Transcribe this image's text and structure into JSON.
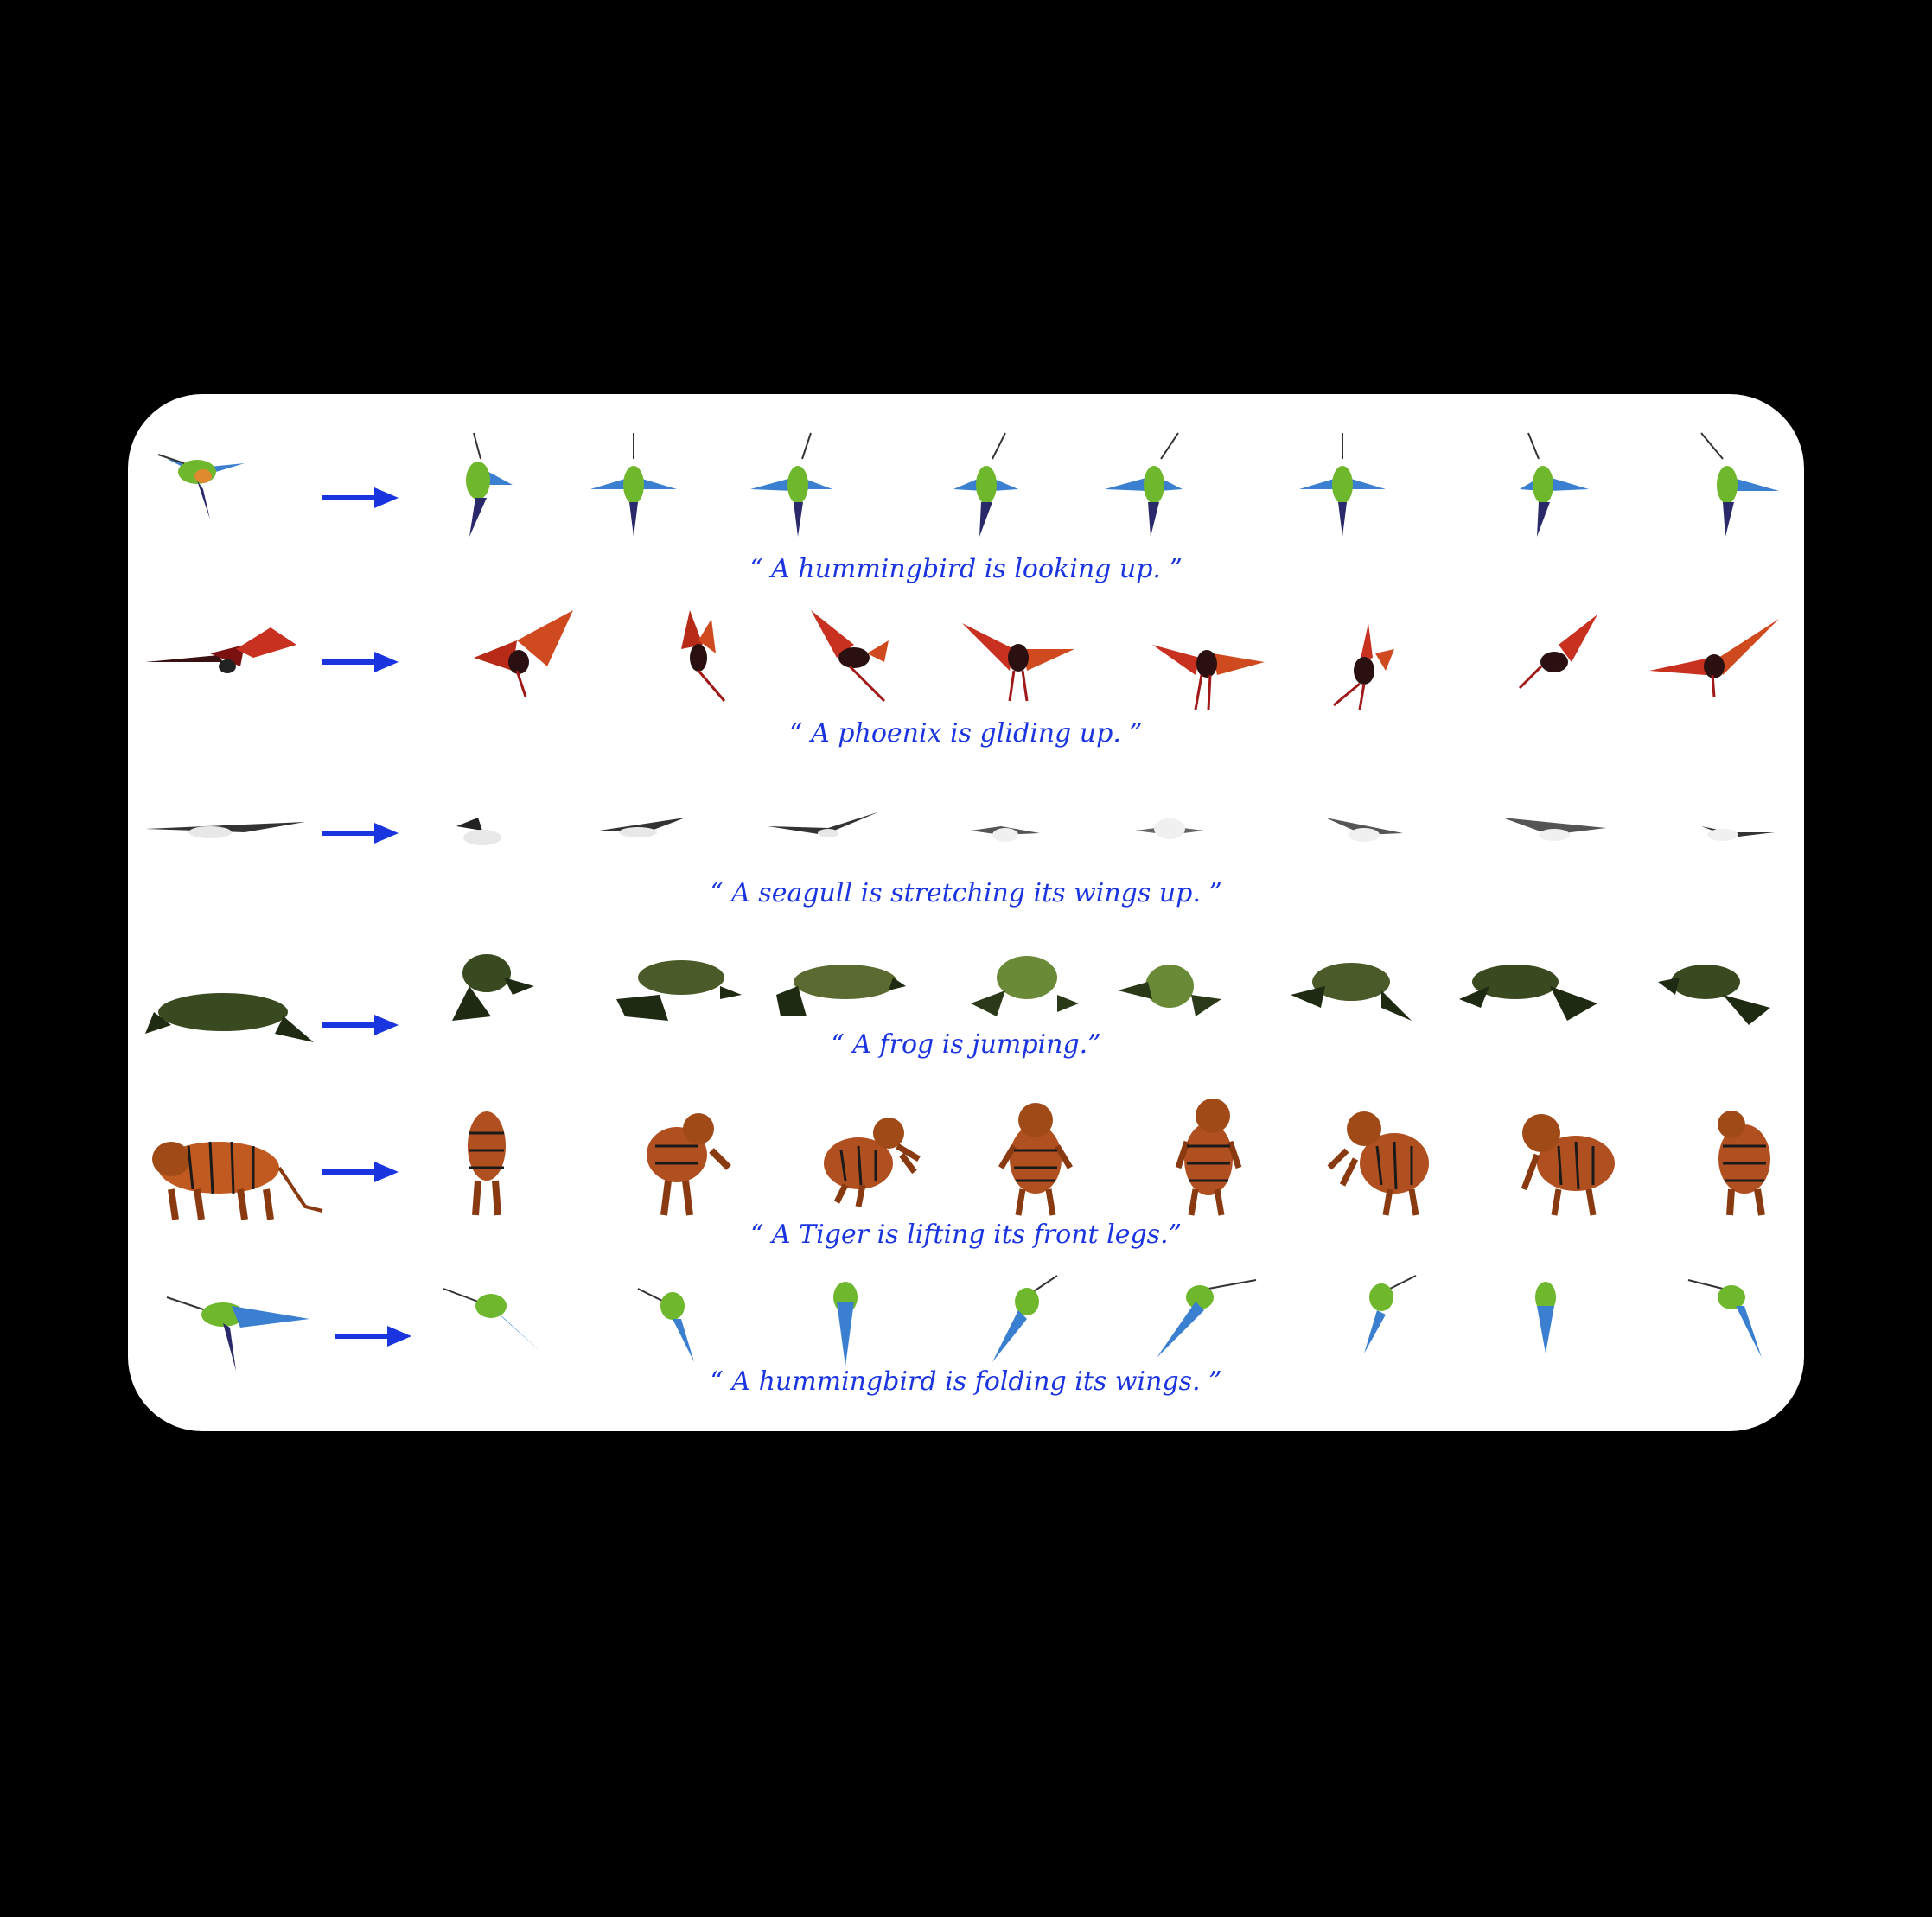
{
  "colors": {
    "background": "#000000",
    "card": "#ffffff",
    "caption": "#1a35e0",
    "arrow": "#1a35e0"
  },
  "rows": [
    {
      "subject": "hummingbird",
      "caption": "“ A hummingbird is looking up. ”",
      "frames": 8
    },
    {
      "subject": "phoenix",
      "caption": "“ A phoenix is gliding up. ”",
      "frames": 8
    },
    {
      "subject": "seagull",
      "caption": "“ A seagull is stretching its wings up. ”",
      "frames": 8
    },
    {
      "subject": "frog",
      "caption": "“ A frog is jumping.”",
      "frames": 8
    },
    {
      "subject": "tiger",
      "caption": "“ A Tiger is lifting its front legs.”",
      "frames": 8
    },
    {
      "subject": "hummingbird",
      "caption": "“ A hummingbird is folding its wings. ”",
      "frames": 8
    }
  ]
}
